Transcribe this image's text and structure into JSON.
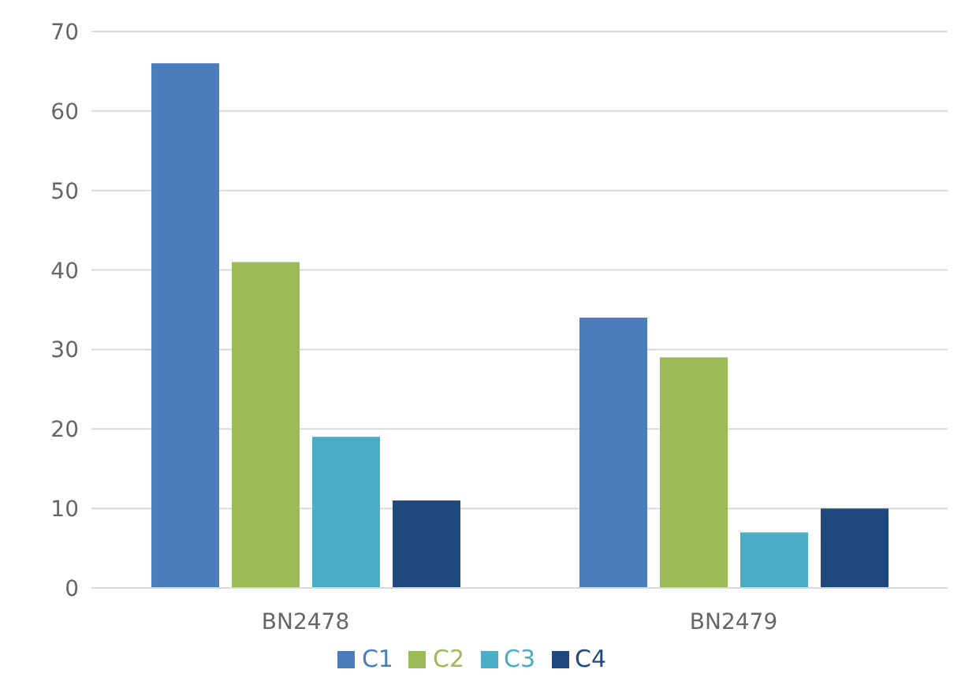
{
  "chart_data": {
    "type": "bar",
    "categories": [
      "BN2478",
      "BN2479"
    ],
    "series": [
      {
        "name": "C1",
        "color": "#4a7ebb",
        "values": [
          66,
          34
        ]
      },
      {
        "name": "C2",
        "color": "#9bbb59",
        "values": [
          41,
          29
        ]
      },
      {
        "name": "C3",
        "color": "#4bacc6",
        "values": [
          19,
          7
        ]
      },
      {
        "name": "C4",
        "color": "#1f497d",
        "values": [
          11,
          10
        ]
      }
    ],
    "ylim": [
      0,
      70
    ],
    "yticks": [
      0,
      10,
      20,
      30,
      40,
      50,
      60,
      70
    ],
    "grid": "y",
    "legend": "bottom"
  }
}
